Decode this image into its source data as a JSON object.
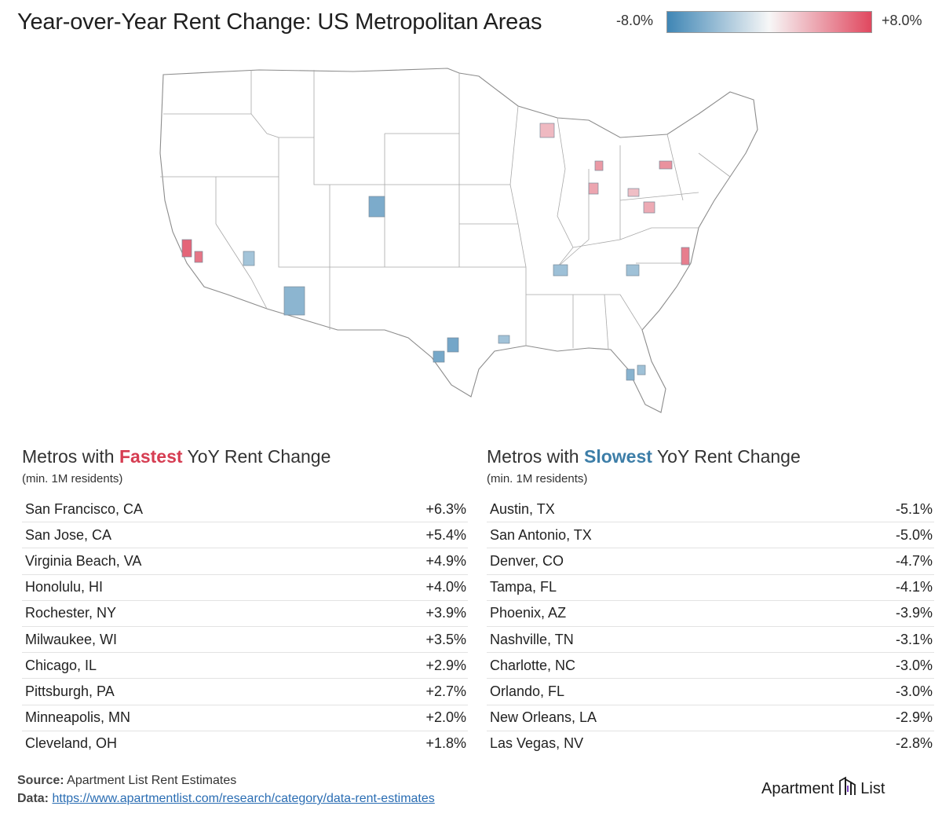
{
  "title": "Year-over-Year Rent Change: US Metropolitan Areas",
  "legend": {
    "min_label": "-8.0%",
    "max_label": "+8.0%",
    "min_value": -8.0,
    "max_value": 8.0,
    "colors": {
      "negative": "#3f86b5",
      "neutral": "#f7f7f7",
      "positive": "#e0485f"
    }
  },
  "fastest": {
    "title_pre": "Metros with ",
    "title_hl": "Fastest",
    "title_post": " YoY Rent Change",
    "subtitle": "(min. 1M residents)",
    "rows": [
      {
        "metro": "San Francisco, CA",
        "value": "+6.3%"
      },
      {
        "metro": "San Jose, CA",
        "value": "+5.4%"
      },
      {
        "metro": "Virginia Beach, VA",
        "value": "+4.9%"
      },
      {
        "metro": "Honolulu, HI",
        "value": "+4.0%"
      },
      {
        "metro": "Rochester, NY",
        "value": "+3.9%"
      },
      {
        "metro": "Milwaukee, WI",
        "value": "+3.5%"
      },
      {
        "metro": "Chicago, IL",
        "value": "+2.9%"
      },
      {
        "metro": "Pittsburgh, PA",
        "value": "+2.7%"
      },
      {
        "metro": "Minneapolis, MN",
        "value": "+2.0%"
      },
      {
        "metro": "Cleveland, OH",
        "value": "+1.8%"
      }
    ]
  },
  "slowest": {
    "title_pre": "Metros with ",
    "title_hl": "Slowest",
    "title_post": " YoY Rent Change",
    "subtitle": "(min. 1M residents)",
    "rows": [
      {
        "metro": "Austin, TX",
        "value": "-5.1%"
      },
      {
        "metro": "San Antonio, TX",
        "value": "-5.0%"
      },
      {
        "metro": "Denver, CO",
        "value": "-4.7%"
      },
      {
        "metro": "Tampa, FL",
        "value": "-4.1%"
      },
      {
        "metro": "Phoenix, AZ",
        "value": "-3.9%"
      },
      {
        "metro": "Nashville, TN",
        "value": "-3.1%"
      },
      {
        "metro": "Charlotte, NC",
        "value": "-3.0%"
      },
      {
        "metro": "Orlando, FL",
        "value": "-3.0%"
      },
      {
        "metro": "New Orleans, LA",
        "value": "-2.9%"
      },
      {
        "metro": "Las Vegas, NV",
        "value": "-2.8%"
      }
    ]
  },
  "map_metros": [
    {
      "name": "San Francisco, CA",
      "change": 6.3
    },
    {
      "name": "San Jose, CA",
      "change": 5.4
    },
    {
      "name": "Virginia Beach, VA",
      "change": 4.9
    },
    {
      "name": "Rochester, NY",
      "change": 3.9
    },
    {
      "name": "Milwaukee, WI",
      "change": 3.5
    },
    {
      "name": "Chicago, IL",
      "change": 2.9
    },
    {
      "name": "Pittsburgh, PA",
      "change": 2.7
    },
    {
      "name": "Minneapolis, MN",
      "change": 2.0
    },
    {
      "name": "Cleveland, OH",
      "change": 1.8
    },
    {
      "name": "Austin, TX",
      "change": -5.1
    },
    {
      "name": "San Antonio, TX",
      "change": -5.0
    },
    {
      "name": "Denver, CO",
      "change": -4.7
    },
    {
      "name": "Tampa, FL",
      "change": -4.1
    },
    {
      "name": "Phoenix, AZ",
      "change": -3.9
    },
    {
      "name": "Nashville, TN",
      "change": -3.1
    },
    {
      "name": "Charlotte, NC",
      "change": -3.0
    },
    {
      "name": "Orlando, FL",
      "change": -3.0
    },
    {
      "name": "New Orleans, LA",
      "change": -2.9
    },
    {
      "name": "Las Vegas, NV",
      "change": -2.8
    }
  ],
  "footer": {
    "source_label": "Source:",
    "source_text": " Apartment List Rent Estimates",
    "data_label": "Data:",
    "data_url": "https://www.apartmentlist.com/research/category/data-rent-estimates"
  },
  "brand": {
    "left": "Apartment",
    "right": "List"
  }
}
